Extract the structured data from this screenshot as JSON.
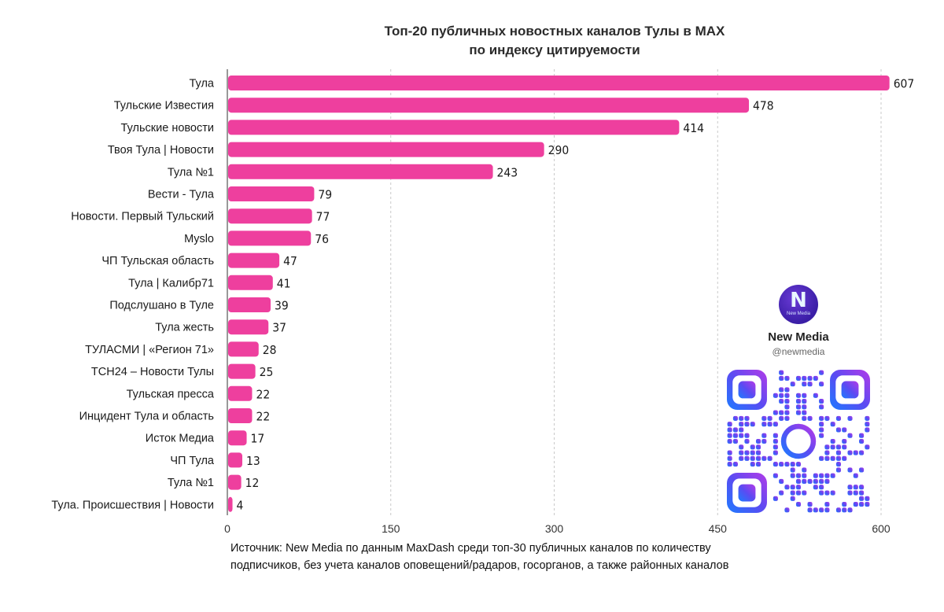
{
  "chart_data": {
    "type": "bar",
    "orientation": "horizontal",
    "title": "Топ-20 публичных новостных каналов Тулы в MAX",
    "subtitle": "по индексу цитируемости",
    "categories": [
      "Тула",
      "Тульские Известия",
      "Тульские новости",
      "Твоя Тула | Новости",
      "Тула №1",
      "Вести - Тула",
      "Новости. Первый Тульский",
      "Myslo",
      "ЧП Тульская область",
      "Тула | Калибр71",
      "Подслушано в Туле",
      "Тула жесть",
      "ТУЛАСМИ | «Регион 71»",
      "ТСН24 – Новости Тулы",
      "Тульская пресса",
      "Инцидент Тула и область",
      "Исток Медиа",
      "ЧП Тула",
      "Тула №1",
      "Тула. Происшествия | Новости"
    ],
    "values": [
      607,
      478,
      414,
      290,
      243,
      79,
      77,
      76,
      47,
      41,
      39,
      37,
      28,
      25,
      22,
      22,
      17,
      13,
      12,
      4
    ],
    "xlim": [
      0,
      600
    ],
    "xticks": [
      0,
      150,
      300,
      450,
      600
    ],
    "grid": true,
    "bar_color": "#ee3f9e"
  },
  "source_note": {
    "line1": "Источник: New Media по данным MaxDash среди топ-30 публичных каналов по количеству",
    "line2": "подписчиков, без учета каналов оповещений/радаров, госорганов, а также районных каналов"
  },
  "brand": {
    "name": "New Media",
    "handle": "@newmedia",
    "logo_letter": "N",
    "logo_sub": "New Media",
    "qr_icon": "qr-code-icon"
  }
}
